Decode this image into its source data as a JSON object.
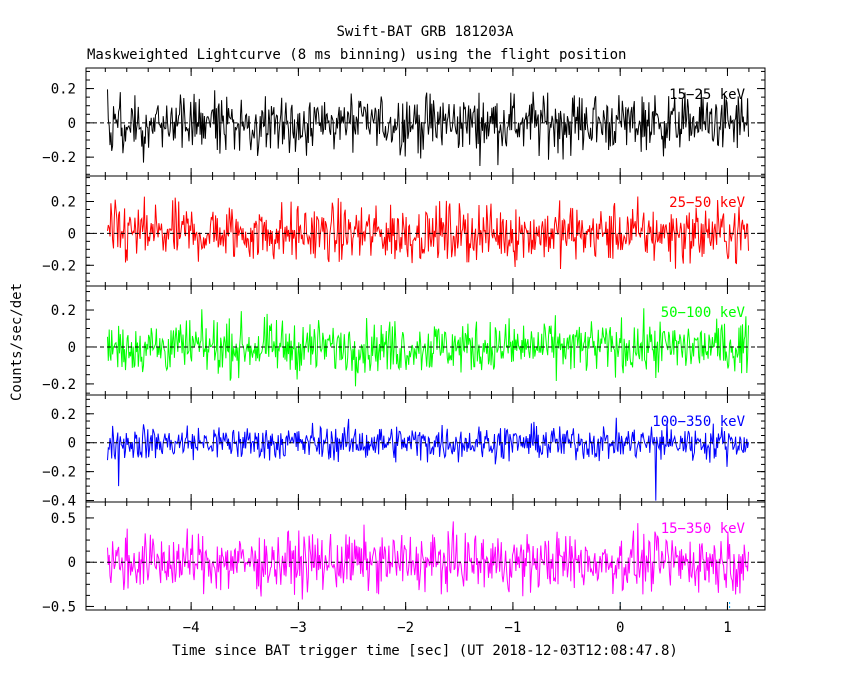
{
  "chart_data": {
    "type": "line",
    "title": "Swift-BAT GRB 181203A",
    "subtitle": "Maskweighted Lightcurve (8 ms binning) using the flight position",
    "xlabel": "Time since BAT trigger time [sec] (UT 2018-12-03T12:08:47.8)",
    "ylabel": "Counts/sec/det",
    "xlim": [
      -4.98,
      1.35
    ],
    "x_ticks": [
      -4,
      -3,
      -2,
      -1,
      0,
      1
    ],
    "x_tick_labels": [
      "−4",
      "−3",
      "−2",
      "−1",
      "0",
      "1"
    ],
    "x_range_data": [
      -4.78,
      1.2
    ],
    "bin_size_s": 0.008,
    "grid": false,
    "legend": "in-panel labels, top-right",
    "markers": [
      0,
      1.02
    ],
    "panels": [
      {
        "name": "15-25 keV",
        "label": "15−25 keV",
        "color": "#000000",
        "ylim": [
          -0.31,
          0.32
        ],
        "y_ticks": [
          0.2,
          0,
          -0.2
        ],
        "y_tick_labels": [
          "0.2",
          "0",
          "−0.2"
        ],
        "noise_std": 0.085,
        "spikes": []
      },
      {
        "name": "25-50 keV",
        "label": "25−50 keV",
        "color": "#ff0000",
        "ylim": [
          -0.33,
          0.36
        ],
        "y_ticks": [
          0.2,
          0,
          -0.2
        ],
        "y_tick_labels": [
          "0.2",
          "0",
          "−0.2"
        ],
        "noise_std": 0.09,
        "spikes": []
      },
      {
        "name": "50-100 keV",
        "label": "50−100 keV",
        "color": "#00ff00",
        "ylim": [
          -0.26,
          0.33
        ],
        "y_ticks": [
          0.2,
          0,
          -0.2
        ],
        "y_tick_labels": [
          "0.2",
          "0",
          "−0.2"
        ],
        "noise_std": 0.07,
        "spikes": []
      },
      {
        "name": "100-350 keV",
        "label": "100−350 keV",
        "color": "#0000ff",
        "ylim": [
          -0.41,
          0.33
        ],
        "y_ticks": [
          0.2,
          0,
          -0.2,
          -0.4
        ],
        "y_tick_labels": [
          "0.2",
          "0",
          "−0.2",
          "−0.4"
        ],
        "noise_std": 0.06,
        "spikes": [
          [
            -4.68,
            -0.3
          ],
          [
            0.33,
            -0.4
          ]
        ]
      },
      {
        "name": "15-350 keV",
        "label": "15−350 keV",
        "color": "#ff00ff",
        "ylim": [
          -0.54,
          0.68
        ],
        "y_ticks": [
          0.5,
          0,
          -0.5
        ],
        "y_tick_labels": [
          "0.5",
          "0",
          "−0.5"
        ],
        "noise_std": 0.16,
        "spikes": []
      }
    ]
  }
}
